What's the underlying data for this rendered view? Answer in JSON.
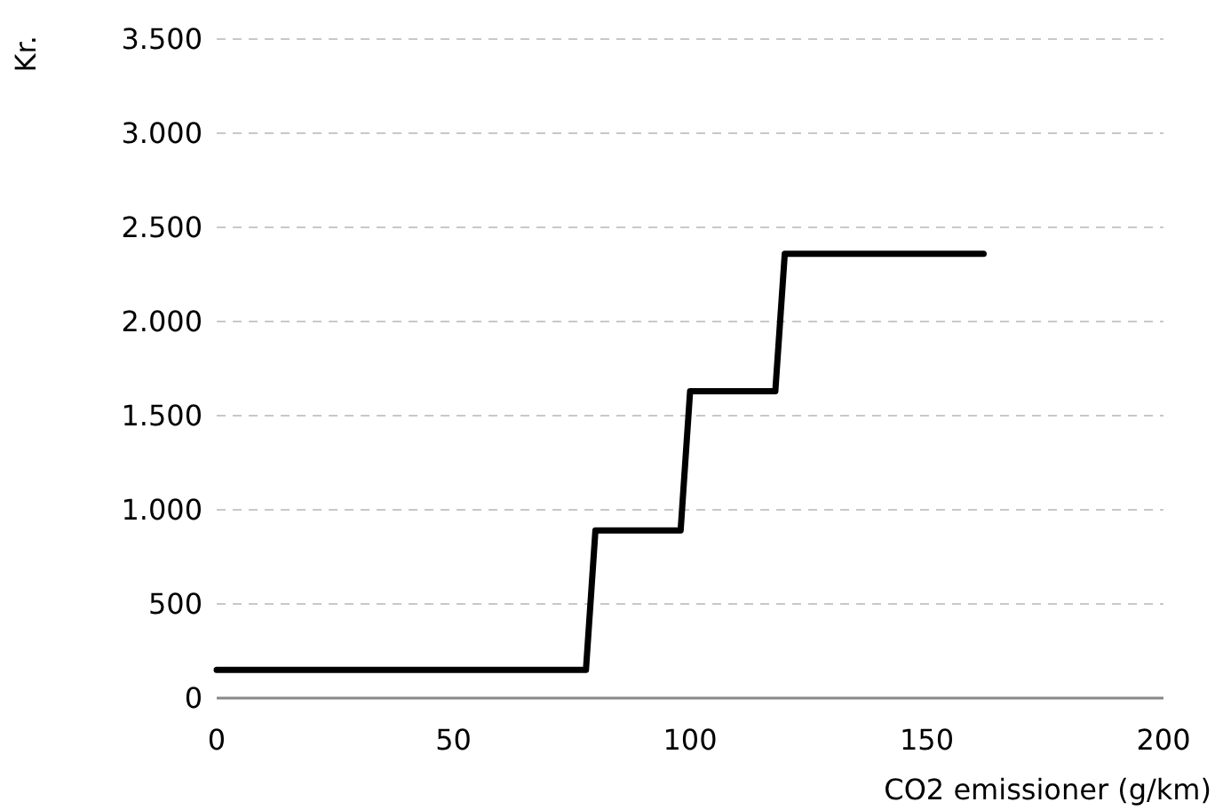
{
  "chart_data": {
    "type": "line",
    "xlabel": "CO2 emissioner (g/km)",
    "ylabel": "Kr.",
    "x": [
      0,
      78,
      80,
      98,
      100,
      118,
      120,
      162
    ],
    "series": [
      {
        "color": "#000000",
        "values": [
          150,
          150,
          890,
          890,
          1630,
          1630,
          2360,
          2360
        ]
      }
    ],
    "xlim": [
      0,
      200
    ],
    "xticks": [
      0,
      50,
      100,
      150,
      200
    ],
    "ylim": [
      0,
      3500
    ],
    "yticks": [
      0,
      500,
      {
        "value": 1000,
        "label": "1.000"
      },
      {
        "value": 1500,
        "label": "1.500"
      },
      {
        "value": 2000,
        "label": "2.000"
      },
      {
        "value": 2500,
        "label": "2.500"
      },
      {
        "value": 3000,
        "label": "3.000"
      },
      {
        "value": 3500,
        "label": "3.500"
      }
    ],
    "grid": "y",
    "marker": "none",
    "line_style": "solid"
  }
}
